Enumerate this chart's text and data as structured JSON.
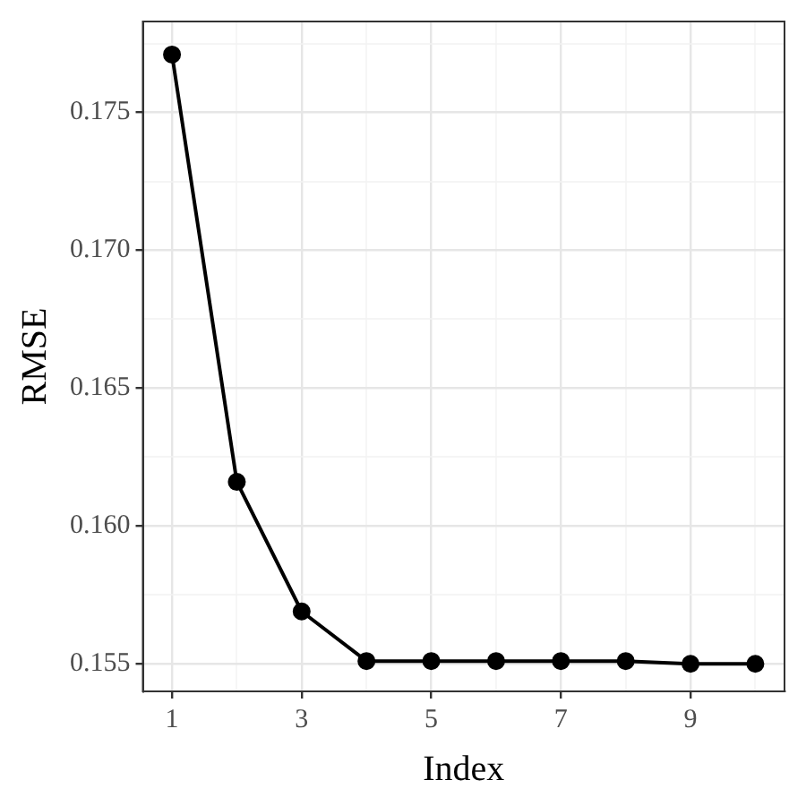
{
  "chart_data": {
    "type": "line",
    "xlabel": "Index",
    "ylabel": "RMSE",
    "x": [
      1,
      2,
      3,
      4,
      5,
      6,
      7,
      8,
      9,
      10
    ],
    "series": [
      {
        "color": "#000000",
        "values": [
          0.1771,
          0.1616,
          0.1569,
          0.1551,
          0.1551,
          0.1551,
          0.1551,
          0.1551,
          0.155,
          0.155
        ]
      }
    ],
    "xlim": [
      0.55,
      10.45
    ],
    "ylim": [
      0.154,
      0.1783
    ],
    "xticks": [
      1,
      {
        "value": 2,
        "label": null
      },
      3,
      {
        "value": 4,
        "label": null
      },
      5,
      {
        "value": 6,
        "label": null
      },
      7,
      {
        "value": 8,
        "label": null
      },
      9,
      {
        "value": 10,
        "label": null
      }
    ],
    "yticks": [
      0.155,
      {
        "value": 0.1575,
        "label": null
      },
      {
        "value": 0.16,
        "label": "0.160"
      },
      {
        "value": 0.1625,
        "label": null
      },
      0.165,
      {
        "value": 0.1675,
        "label": null
      },
      {
        "value": 0.17,
        "label": "0.170"
      },
      {
        "value": 0.1725,
        "label": null
      },
      0.175,
      {
        "value": 0.1775,
        "label": null
      }
    ],
    "grid": true,
    "marker": "circle",
    "line_style": "solid",
    "legend": false
  }
}
